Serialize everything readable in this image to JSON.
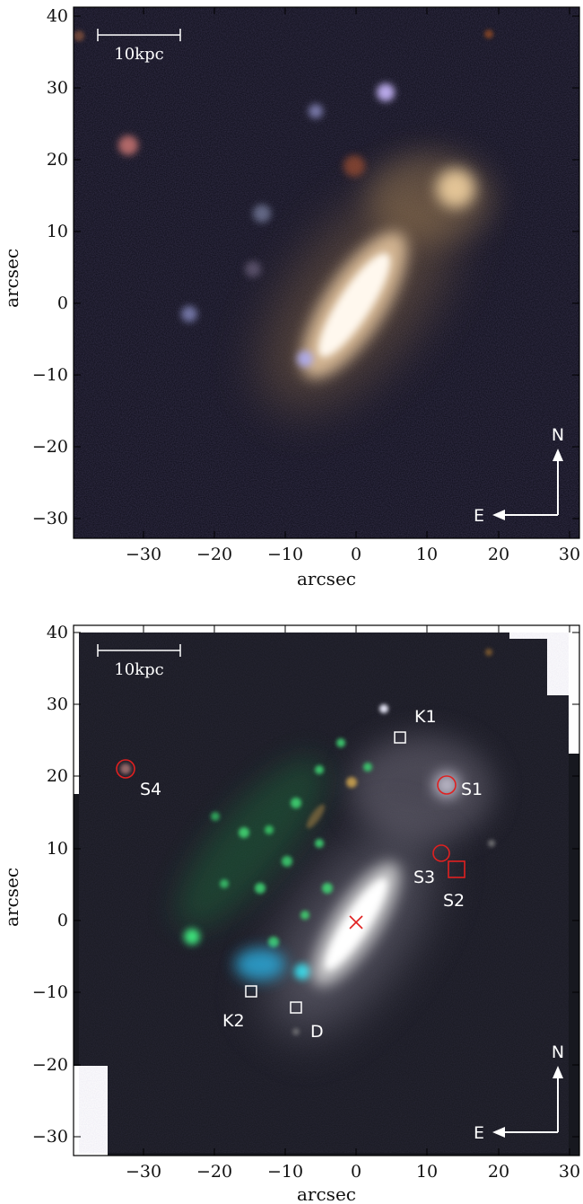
{
  "panels": [
    {
      "id": "top",
      "xlabel": "arcsec",
      "ylabel": "arcsec",
      "xticks": [
        "−30",
        "−20",
        "−10",
        "0",
        "10",
        "20",
        "30"
      ],
      "yticks": [
        "40",
        "30",
        "20",
        "10",
        "0",
        "−10",
        "−20",
        "−30"
      ],
      "scale_bar": "10kpc",
      "compass": {
        "north": "N",
        "east": "E"
      }
    },
    {
      "id": "bottom",
      "xlabel": "arcsec",
      "ylabel": "arcsec",
      "xticks": [
        "−30",
        "−20",
        "−10",
        "0",
        "10",
        "20",
        "30"
      ],
      "yticks": [
        "40",
        "30",
        "20",
        "10",
        "0",
        "−10",
        "−20",
        "−30"
      ],
      "scale_bar": "10kpc",
      "compass": {
        "north": "N",
        "east": "E"
      },
      "markers": {
        "K1": "K1",
        "K2": "K2",
        "D": "D",
        "S1": "S1",
        "S2": "S2",
        "S3": "S3",
        "S4": "S4"
      }
    }
  ],
  "colors": {
    "red_marker": "#e02020",
    "white_marker": "#ffffff",
    "sky": "#0b0b16"
  }
}
